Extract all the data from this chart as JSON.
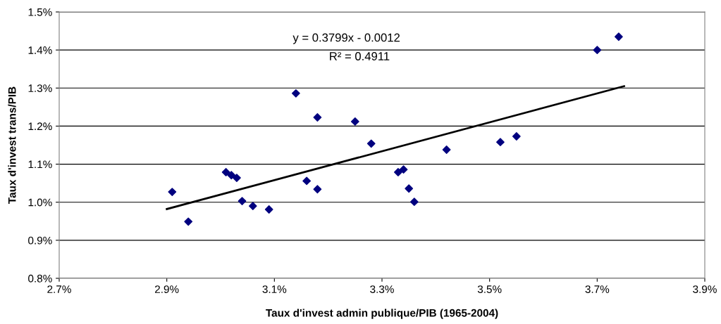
{
  "chart_data": {
    "type": "scatter",
    "xlabel": "Taux d'invest admin publique/PIB (1965-2004)",
    "ylabel": "Taux d'invest trans/PIB",
    "xlim": [
      2.7,
      3.9
    ],
    "ylim": [
      0.8,
      1.5
    ],
    "xticks": [
      {
        "value": 2.7,
        "label": "2.7%"
      },
      {
        "value": 2.9,
        "label": "2.9%"
      },
      {
        "value": 3.1,
        "label": "3.1%"
      },
      {
        "value": 3.3,
        "label": "3.3%"
      },
      {
        "value": 3.5,
        "label": "3.5%"
      },
      {
        "value": 3.7,
        "label": "3.7%"
      },
      {
        "value": 3.9,
        "label": "3.9%"
      }
    ],
    "yticks": [
      {
        "value": 0.8,
        "label": "0.8%"
      },
      {
        "value": 0.9,
        "label": "0.9%"
      },
      {
        "value": 1.0,
        "label": "1.0%"
      },
      {
        "value": 1.1,
        "label": "1.1%"
      },
      {
        "value": 1.2,
        "label": "1.2%"
      },
      {
        "value": 1.3,
        "label": "1.3%"
      },
      {
        "value": 1.4,
        "label": "1.4%"
      },
      {
        "value": 1.5,
        "label": "1.5%"
      }
    ],
    "grid": "y",
    "marker": "diamond",
    "series": [
      {
        "color": "#00007f",
        "x": [
          2.91,
          2.94,
          3.01,
          3.02,
          3.03,
          3.04,
          3.06,
          3.09,
          3.14,
          3.16,
          3.18,
          3.18,
          3.25,
          3.28,
          3.33,
          3.34,
          3.35,
          3.36,
          3.42,
          3.52,
          3.55,
          3.7,
          3.74
        ],
        "values": [
          1.027,
          0.949,
          1.079,
          1.071,
          1.064,
          1.003,
          0.99,
          0.981,
          1.286,
          1.056,
          1.223,
          1.034,
          1.212,
          1.154,
          1.079,
          1.086,
          1.036,
          1.001,
          1.138,
          1.158,
          1.173,
          1.4,
          1.435
        ]
      },
      {
        "type": "line",
        "color": "#000000",
        "marker": "none",
        "x": [
          2.9,
          3.75
        ],
        "values": [
          0.982,
          1.305
        ]
      }
    ],
    "annotations": [
      "y = 0.3799x - 0.0012",
      "R² = 0.4911"
    ]
  }
}
